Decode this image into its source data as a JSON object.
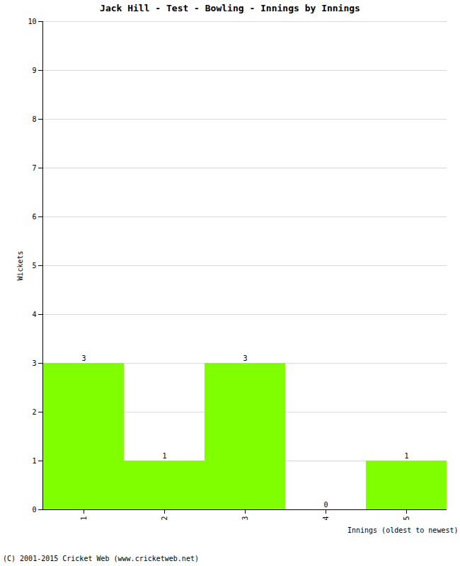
{
  "chart_data": {
    "type": "bar",
    "title": "Jack Hill - Test - Bowling - Innings by Innings",
    "xlabel": "Innings (oldest to newest)",
    "ylabel": "Wickets",
    "categories": [
      "1",
      "2",
      "3",
      "4",
      "5"
    ],
    "values": [
      3,
      1,
      3,
      0,
      1
    ],
    "color": "#80ff00",
    "ylim": [
      0,
      10
    ],
    "yticks": [
      0,
      1,
      2,
      3,
      4,
      5,
      6,
      7,
      8,
      9,
      10
    ],
    "grid": true,
    "data_labels": true,
    "caption": "(C) 2001-2015 Cricket Web (www.cricketweb.net)"
  }
}
